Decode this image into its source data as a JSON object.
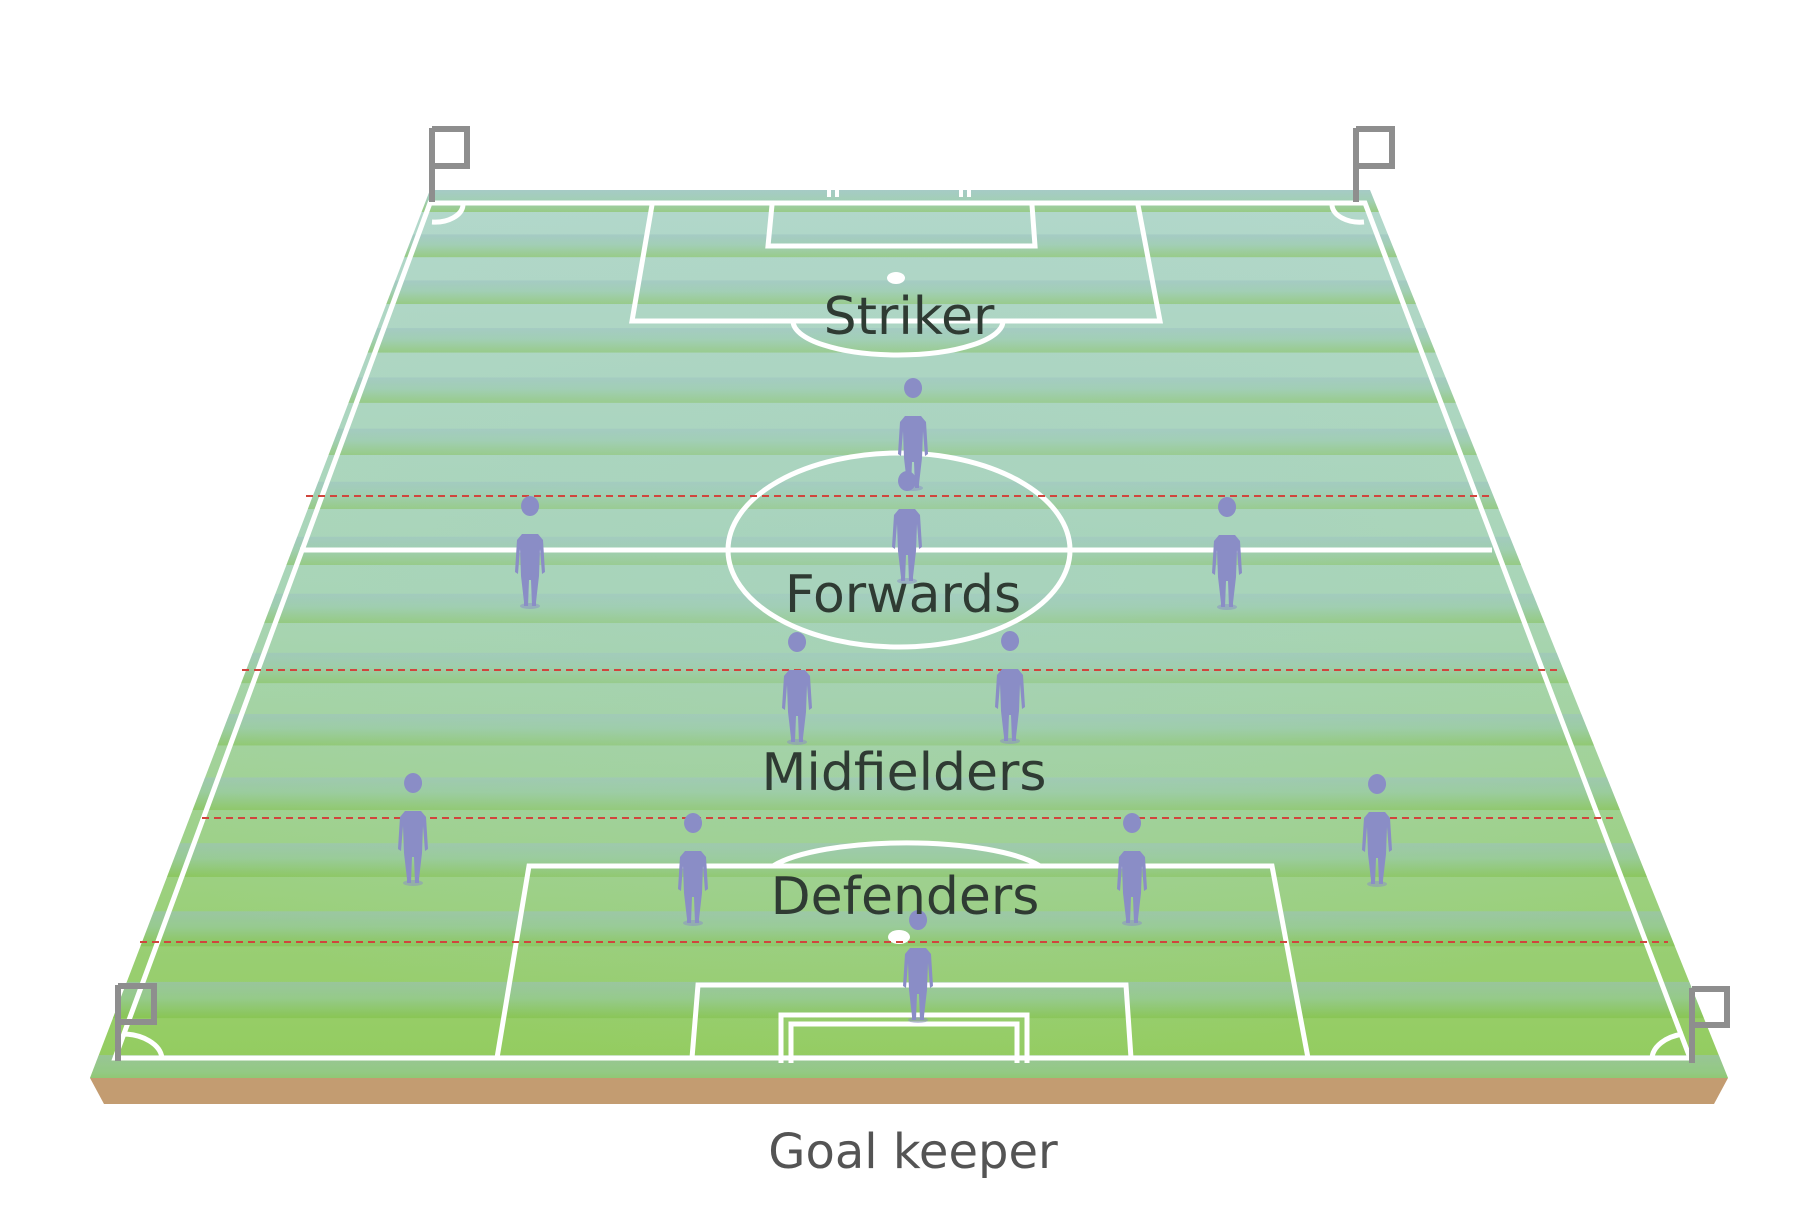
{
  "labels": {
    "striker": "Striker",
    "forwards": "Forwards",
    "midfielders": "Midfielders",
    "defenders": "Defenders",
    "goalkeeper": "Goal keeper"
  },
  "colors": {
    "pitch_far": "#b0d7c9",
    "pitch_mid": "#a8d6b0",
    "pitch_near": "#8fca57",
    "stripe_dark_far": "#9fc2bf",
    "stripe_dark_near": "#86c24c",
    "lines": "#ffffff",
    "zone_divider": "#d0453d",
    "player": "#8a8dc6",
    "soil": "#c39c71",
    "flag": "#8e8e8e"
  },
  "formation": {
    "striker": 1,
    "forwards": 3,
    "midfielders": 2,
    "defenders": 4,
    "goalkeeper": 1
  }
}
